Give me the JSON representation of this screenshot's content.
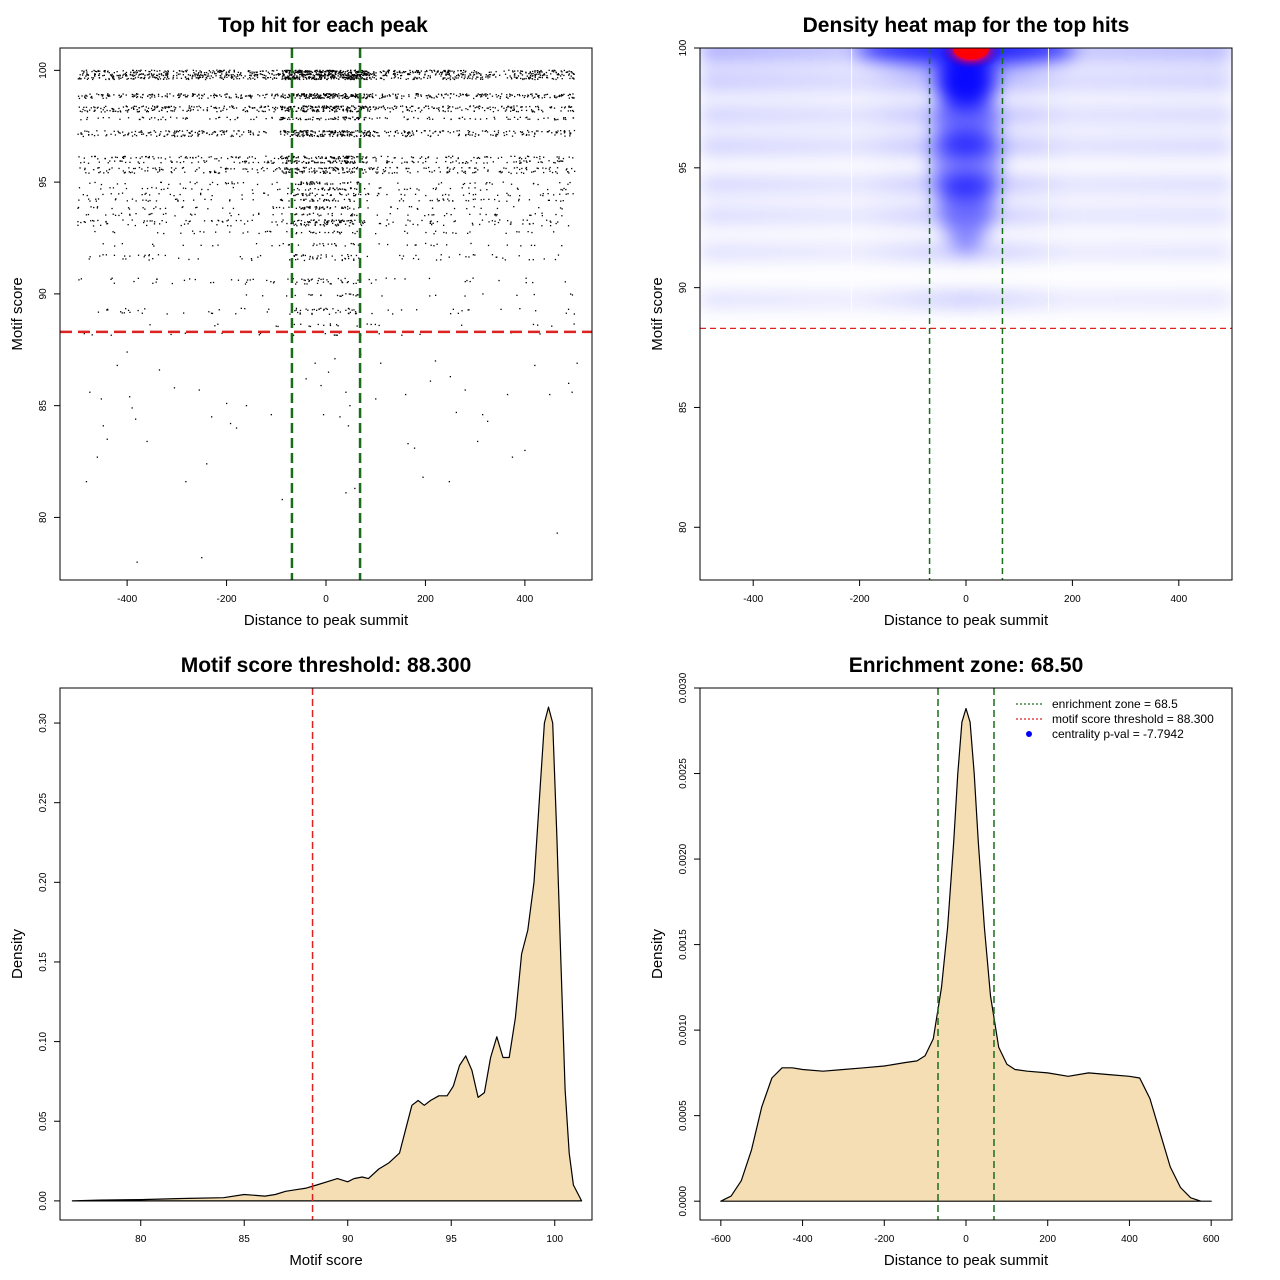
{
  "chart_data": [
    {
      "id": "scatter",
      "type": "scatter",
      "title": "Top hit for each peak",
      "xlabel": "Distance to peak summit",
      "ylabel": "Motif score",
      "xlim": [
        -535,
        535
      ],
      "ylim": [
        77.2,
        101.0
      ],
      "xticks": [
        -400,
        -200,
        0,
        200,
        400
      ],
      "yticks": [
        80,
        85,
        90,
        95,
        100
      ],
      "score_threshold": 88.3,
      "enrichment_zone": [
        -68.5,
        68.5
      ],
      "threshold_color": "#dd2222",
      "zone_color": "#1a6e1a",
      "point_color": "#000000",
      "dense_rows": [
        {
          "y": 99.95,
          "count": 420
        },
        {
          "y": 99.8,
          "count": 420
        },
        {
          "y": 99.65,
          "count": 360
        },
        {
          "y": 98.9,
          "count": 300
        },
        {
          "y": 98.8,
          "count": 200
        },
        {
          "y": 98.35,
          "count": 300
        },
        {
          "y": 98.2,
          "count": 200
        },
        {
          "y": 97.85,
          "count": 160
        },
        {
          "y": 97.25,
          "count": 260
        },
        {
          "y": 97.1,
          "count": 200
        },
        {
          "y": 96.1,
          "count": 200
        },
        {
          "y": 95.9,
          "count": 180
        },
        {
          "y": 95.6,
          "count": 160
        },
        {
          "y": 95.45,
          "count": 140
        }
      ],
      "medium_rows": [
        {
          "y": 94.95,
          "count": 90
        },
        {
          "y": 94.7,
          "count": 80
        },
        {
          "y": 94.45,
          "count": 90
        },
        {
          "y": 94.2,
          "count": 100
        },
        {
          "y": 93.85,
          "count": 90
        },
        {
          "y": 93.55,
          "count": 80
        },
        {
          "y": 93.25,
          "count": 120
        },
        {
          "y": 93.1,
          "count": 80
        },
        {
          "y": 92.75,
          "count": 60
        },
        {
          "y": 92.2,
          "count": 50
        },
        {
          "y": 91.7,
          "count": 55
        },
        {
          "y": 91.55,
          "count": 40
        },
        {
          "y": 90.65,
          "count": 45
        },
        {
          "y": 90.5,
          "count": 35
        },
        {
          "y": 89.95,
          "count": 30
        },
        {
          "y": 89.3,
          "count": 45
        },
        {
          "y": 89.15,
          "count": 35
        },
        {
          "y": 88.6,
          "count": 25
        },
        {
          "y": 88.2,
          "count": 20
        }
      ],
      "sparse_points": [
        [
          -482,
          81.6
        ],
        [
          -475,
          85.6
        ],
        [
          -460,
          82.7
        ],
        [
          -452,
          85.3
        ],
        [
          -448,
          84.1
        ],
        [
          -440,
          83.5
        ],
        [
          -420,
          86.8
        ],
        [
          -400,
          87.4
        ],
        [
          -395,
          85.4
        ],
        [
          -390,
          84.9
        ],
        [
          -383,
          84.4
        ],
        [
          -380,
          78.0
        ],
        [
          -360,
          83.4
        ],
        [
          -335,
          86.6
        ],
        [
          -305,
          85.8
        ],
        [
          -282,
          81.6
        ],
        [
          -255,
          85.7
        ],
        [
          -250,
          78.2
        ],
        [
          -240,
          82.4
        ],
        [
          -230,
          84.5
        ],
        [
          -200,
          85.1
        ],
        [
          -192,
          84.2
        ],
        [
          -180,
          84.0
        ],
        [
          -160,
          85.0
        ],
        [
          -110,
          84.6
        ],
        [
          -88,
          80.8
        ],
        [
          -40,
          86.2
        ],
        [
          -22,
          86.9
        ],
        [
          -10,
          85.9
        ],
        [
          -5,
          84.6
        ],
        [
          5,
          86.5
        ],
        [
          18,
          87.1
        ],
        [
          28,
          84.5
        ],
        [
          40,
          85.6
        ],
        [
          45,
          84.1
        ],
        [
          48,
          85.0
        ],
        [
          40,
          81.1
        ],
        [
          58,
          81.3
        ],
        [
          70,
          87.3
        ],
        [
          100,
          85.3
        ],
        [
          110,
          86.9
        ],
        [
          160,
          85.5
        ],
        [
          165,
          83.3
        ],
        [
          178,
          83.1
        ],
        [
          195,
          81.8
        ],
        [
          210,
          86.1
        ],
        [
          220,
          87.0
        ],
        [
          248,
          81.6
        ],
        [
          250,
          86.3
        ],
        [
          262,
          84.7
        ],
        [
          280,
          85.7
        ],
        [
          305,
          83.4
        ],
        [
          315,
          84.6
        ],
        [
          325,
          84.3
        ],
        [
          365,
          85.5
        ],
        [
          375,
          82.7
        ],
        [
          400,
          83.0
        ],
        [
          420,
          86.8
        ],
        [
          450,
          85.5
        ],
        [
          465,
          79.3
        ],
        [
          488,
          86.0
        ],
        [
          495,
          85.6
        ],
        [
          505,
          86.9
        ]
      ]
    },
    {
      "id": "heatmap",
      "type": "heatmap",
      "title": "Density heat map for the top hits",
      "xlabel": "Distance to peak summit",
      "ylabel": "Motif score",
      "xlim": [
        -500,
        500
      ],
      "ylim": [
        77.8,
        100.0
      ],
      "xticks": [
        -400,
        -200,
        0,
        200,
        400
      ],
      "yticks": [
        80,
        85,
        90,
        95,
        100
      ],
      "score_threshold": 88.3,
      "enrichment_zone": [
        -68.5,
        68.5
      ],
      "threshold_color": "#dd2222",
      "zone_color": "#1a6e1a",
      "colors": {
        "low": "#ffffff",
        "mid": "#0000ff",
        "high": "#ff0000"
      },
      "density_bands": [
        {
          "y": 99.9,
          "strength": 1.0
        },
        {
          "y": 98.6,
          "strength": 0.55
        },
        {
          "y": 97.2,
          "strength": 0.4
        },
        {
          "y": 95.9,
          "strength": 0.4
        },
        {
          "y": 94.3,
          "strength": 0.32
        },
        {
          "y": 93.0,
          "strength": 0.25
        },
        {
          "y": 91.5,
          "strength": 0.15
        },
        {
          "y": 89.5,
          "strength": 0.1
        }
      ]
    },
    {
      "id": "score-density",
      "type": "area",
      "title": "Motif score threshold: 88.300",
      "xlabel": "Motif score",
      "ylabel": "Density",
      "xlim": [
        76.1,
        101.8
      ],
      "ylim": [
        -0.012,
        0.322
      ],
      "xticks": [
        80,
        85,
        90,
        95,
        100
      ],
      "yticks": [
        0.0,
        0.05,
        0.1,
        0.15,
        0.2,
        0.25,
        0.3
      ],
      "ytick_labels": [
        "0.00",
        "0.05",
        "0.10",
        "0.15",
        "0.20",
        "0.25",
        "0.30"
      ],
      "score_threshold": 88.3,
      "threshold_color": "#dd2222",
      "fill_color": "#f5deb3",
      "x": [
        76.7,
        78.0,
        80.0,
        82.0,
        84.0,
        85.0,
        86.0,
        86.5,
        87.0,
        87.5,
        88.0,
        88.5,
        89.0,
        89.5,
        90.0,
        90.3,
        90.7,
        91.0,
        91.5,
        92.0,
        92.5,
        92.8,
        93.1,
        93.4,
        93.7,
        94.0,
        94.4,
        94.8,
        95.1,
        95.4,
        95.7,
        96.0,
        96.3,
        96.6,
        96.9,
        97.2,
        97.5,
        97.8,
        98.1,
        98.4,
        98.7,
        99.0,
        99.3,
        99.5,
        99.7,
        99.9,
        100.1,
        100.3,
        100.5,
        100.7,
        100.9,
        101.3
      ],
      "y": [
        0.0,
        0.0005,
        0.0008,
        0.0015,
        0.002,
        0.004,
        0.003,
        0.004,
        0.006,
        0.007,
        0.008,
        0.01,
        0.012,
        0.014,
        0.012,
        0.014,
        0.015,
        0.014,
        0.02,
        0.024,
        0.03,
        0.045,
        0.06,
        0.063,
        0.06,
        0.063,
        0.066,
        0.066,
        0.072,
        0.085,
        0.091,
        0.082,
        0.065,
        0.068,
        0.09,
        0.103,
        0.09,
        0.09,
        0.115,
        0.155,
        0.17,
        0.2,
        0.26,
        0.3,
        0.31,
        0.3,
        0.23,
        0.15,
        0.07,
        0.03,
        0.01,
        0.0
      ]
    },
    {
      "id": "distance-density",
      "type": "area",
      "title": "Enrichment zone: 68.50",
      "xlabel": "Distance to peak summit",
      "ylabel": "Density",
      "xlim": [
        -651,
        651
      ],
      "ylim": [
        -0.00011,
        0.003
      ],
      "xticks": [
        -600,
        -400,
        -200,
        0,
        200,
        400,
        600
      ],
      "yticks": [
        0.0,
        0.0005,
        0.001,
        0.0015,
        0.002,
        0.0025,
        0.003
      ],
      "ytick_labels": [
        "0.0000",
        "0.0005",
        "0.0010",
        "0.0015",
        "0.0020",
        "0.0025",
        "0.0030"
      ],
      "enrichment_zone": [
        -68.5,
        68.5
      ],
      "zone_color": "#1a6e1a",
      "fill_color": "#f5deb3",
      "x": [
        -600,
        -575,
        -550,
        -525,
        -500,
        -475,
        -450,
        -425,
        -400,
        -350,
        -300,
        -250,
        -200,
        -150,
        -120,
        -100,
        -80,
        -60,
        -45,
        -30,
        -20,
        -10,
        0,
        10,
        20,
        30,
        45,
        60,
        80,
        100,
        120,
        150,
        200,
        250,
        300,
        350,
        400,
        425,
        450,
        475,
        500,
        525,
        550,
        575,
        600
      ],
      "y": [
        0.0,
        3e-05,
        0.00012,
        0.0003,
        0.00055,
        0.00072,
        0.00078,
        0.00078,
        0.00077,
        0.00076,
        0.00077,
        0.00078,
        0.00079,
        0.00081,
        0.00082,
        0.00085,
        0.00095,
        0.00125,
        0.0016,
        0.0021,
        0.0025,
        0.0028,
        0.00288,
        0.0028,
        0.0025,
        0.0021,
        0.0016,
        0.0012,
        0.0009,
        0.0008,
        0.00077,
        0.00076,
        0.00075,
        0.00073,
        0.00075,
        0.00074,
        0.00073,
        0.00072,
        0.0006,
        0.0004,
        0.0002,
        8e-05,
        2e-05,
        0.0,
        0.0
      ],
      "legend": {
        "placement": "top-right",
        "items": [
          {
            "label": "enrichment zone = 68.5",
            "symbol": "dotted-line",
            "color": "#1a6e1a"
          },
          {
            "label": "motif score threshold = 88.300",
            "symbol": "dotted-line",
            "color": "#dd2222"
          },
          {
            "label": "centrality p-val = -7.7942",
            "symbol": "point",
            "color": "#0000ff"
          }
        ]
      }
    }
  ]
}
